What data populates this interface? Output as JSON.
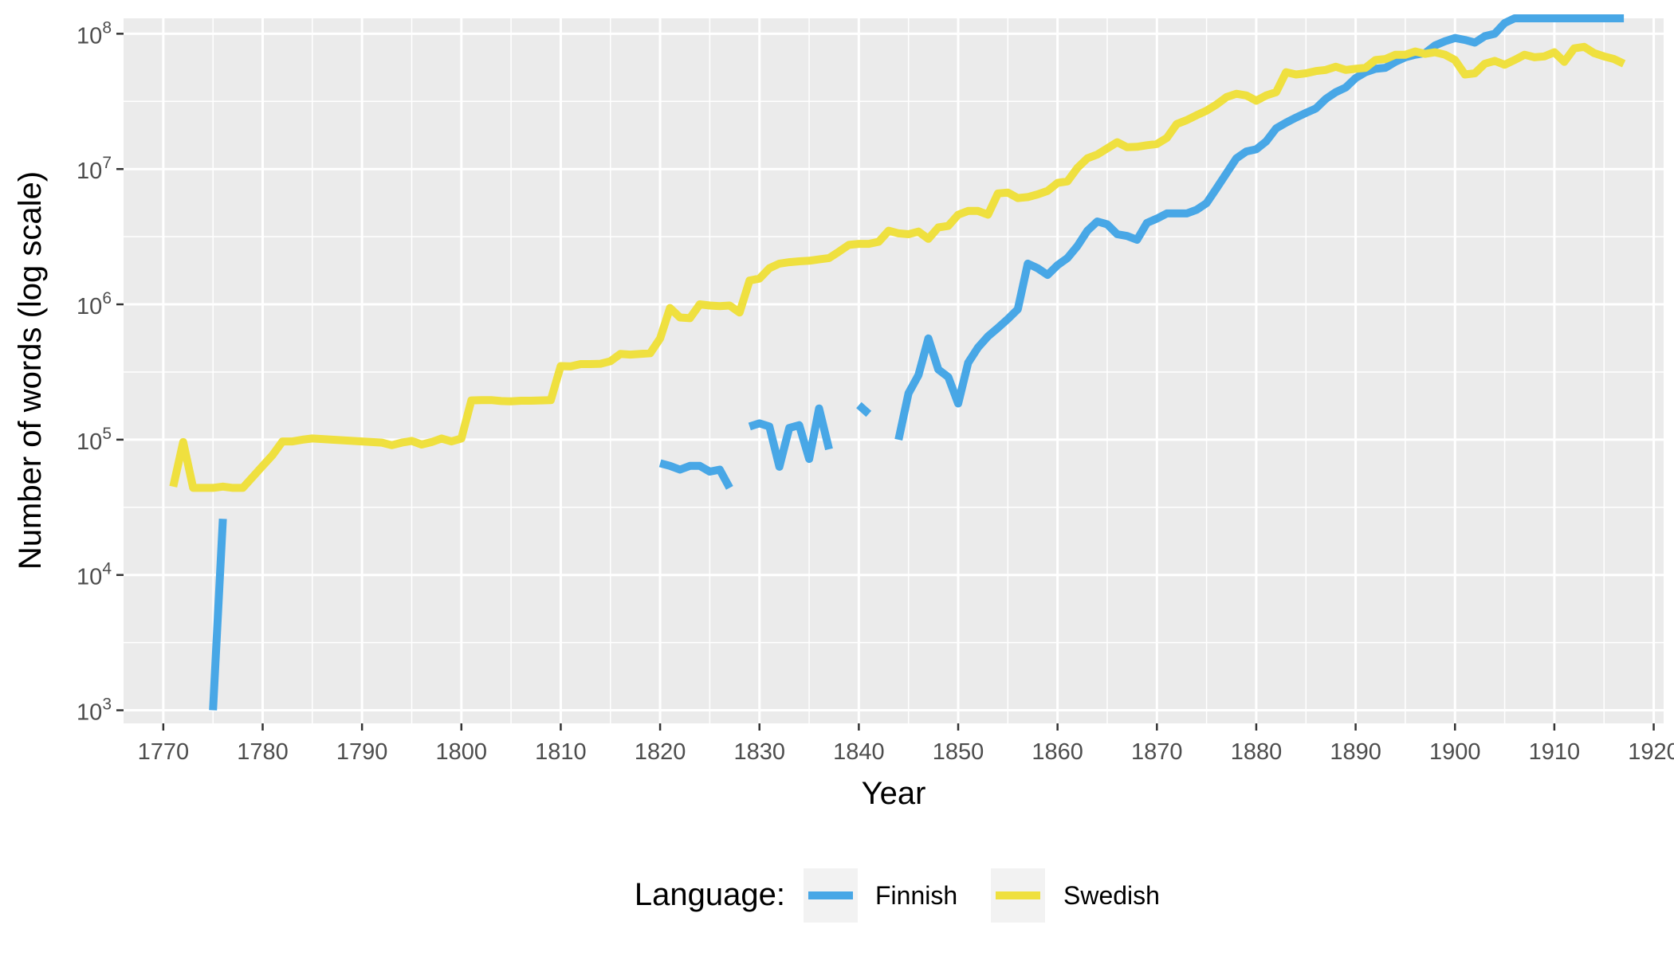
{
  "chart_data": {
    "type": "line",
    "xlabel": "Year",
    "ylabel": "Number of words (log scale)",
    "y_scale": "log10",
    "xlim": [
      1766,
      1921
    ],
    "ylim": [
      800,
      130000000
    ],
    "x_ticks": [
      1770,
      1780,
      1790,
      1800,
      1810,
      1820,
      1830,
      1840,
      1850,
      1860,
      1870,
      1880,
      1890,
      1900,
      1910,
      1920
    ],
    "x_tick_labels": [
      "1770",
      "1780",
      "1790",
      "1800",
      "1810",
      "1820",
      "1830",
      "1840",
      "1850",
      "1860",
      "1870",
      "1880",
      "1890",
      "1900",
      "1910",
      "1920"
    ],
    "y_ticks": [
      1000,
      10000,
      100000,
      1000000,
      10000000,
      100000000
    ],
    "y_tick_labels": [
      {
        "base": "10",
        "exp": "3"
      },
      {
        "base": "10",
        "exp": "4"
      },
      {
        "base": "10",
        "exp": "5"
      },
      {
        "base": "10",
        "exp": "6"
      },
      {
        "base": "10",
        "exp": "7"
      },
      {
        "base": "10",
        "exp": "8"
      }
    ],
    "grid": true,
    "legend": {
      "title": "Language:",
      "position": "bottom"
    },
    "series": [
      {
        "name": "Finnish",
        "color": "#48A7E6",
        "segments": [
          [
            [
              1775,
              1000
            ],
            [
              1776,
              26000
            ]
          ],
          [
            [
              1820,
              67000
            ],
            [
              1821,
              64000
            ],
            [
              1822,
              60000
            ],
            [
              1823,
              64000
            ],
            [
              1824,
              64000
            ],
            [
              1825,
              58000
            ],
            [
              1826,
              60000
            ],
            [
              1827,
              44000
            ]
          ],
          [
            [
              1829,
              125000
            ],
            [
              1830,
              132000
            ],
            [
              1831,
              125000
            ],
            [
              1832,
              63000
            ],
            [
              1833,
              122000
            ],
            [
              1834,
              128000
            ],
            [
              1835,
              72000
            ],
            [
              1836,
              170000
            ],
            [
              1837,
              85000
            ]
          ],
          [
            [
              1840,
              180000
            ],
            [
              1841,
              155000
            ]
          ],
          [
            [
              1844,
              100000
            ],
            [
              1845,
              220000
            ],
            [
              1846,
              300000
            ],
            [
              1847,
              560000
            ],
            [
              1848,
              330000
            ],
            [
              1849,
              290000
            ],
            [
              1850,
              185000
            ],
            [
              1851,
              370000
            ],
            [
              1852,
              480000
            ],
            [
              1853,
              580000
            ],
            [
              1854,
              670000
            ],
            [
              1855,
              780000
            ],
            [
              1856,
              920000
            ],
            [
              1857,
              2000000
            ],
            [
              1858,
              1850000
            ],
            [
              1859,
              1650000
            ],
            [
              1860,
              1950000
            ],
            [
              1861,
              2200000
            ],
            [
              1862,
              2700000
            ],
            [
              1863,
              3500000
            ],
            [
              1864,
              4100000
            ],
            [
              1865,
              3900000
            ],
            [
              1866,
              3300000
            ],
            [
              1867,
              3200000
            ],
            [
              1868,
              3000000
            ],
            [
              1869,
              4000000
            ],
            [
              1870,
              4300000
            ],
            [
              1871,
              4700000
            ],
            [
              1872,
              4700000
            ],
            [
              1873,
              4700000
            ],
            [
              1874,
              5000000
            ],
            [
              1875,
              5600000
            ],
            [
              1876,
              7200000
            ],
            [
              1877,
              9300000
            ],
            [
              1878,
              12000000
            ],
            [
              1879,
              13500000
            ],
            [
              1880,
              14000000
            ],
            [
              1881,
              16000000
            ],
            [
              1882,
              20000000
            ],
            [
              1883,
              22000000
            ],
            [
              1884,
              24000000
            ],
            [
              1885,
              26000000
            ],
            [
              1886,
              28000000
            ],
            [
              1887,
              33000000
            ],
            [
              1888,
              37000000
            ],
            [
              1889,
              40000000
            ],
            [
              1890,
              47000000
            ],
            [
              1891,
              52000000
            ],
            [
              1892,
              55000000
            ],
            [
              1893,
              56000000
            ],
            [
              1894,
              62000000
            ],
            [
              1895,
              67000000
            ],
            [
              1896,
              70000000
            ],
            [
              1897,
              72000000
            ],
            [
              1898,
              82000000
            ],
            [
              1899,
              88000000
            ],
            [
              1900,
              93000000
            ],
            [
              1901,
              90000000
            ],
            [
              1902,
              86000000
            ],
            [
              1903,
              96000000
            ],
            [
              1904,
              100000000
            ],
            [
              1905,
              120000000
            ],
            [
              1906,
              155000000
            ],
            [
              1907,
              180000000
            ],
            [
              1908,
              190000000
            ],
            [
              1909,
              195000000
            ],
            [
              1910,
              196000000
            ],
            [
              1911,
              185000000
            ],
            [
              1912,
              196000000
            ],
            [
              1913,
              202000000
            ],
            [
              1914,
              185000000
            ],
            [
              1915,
              195000000
            ],
            [
              1916,
              195000000
            ],
            [
              1917,
              178000000
            ]
          ]
        ]
      },
      {
        "name": "Swedish",
        "color": "#EFE03F",
        "segments": [
          [
            [
              1771,
              45000
            ],
            [
              1772,
              96000
            ],
            [
              1773,
              44000
            ],
            [
              1774,
              44000
            ],
            [
              1775,
              44000
            ],
            [
              1776,
              45000
            ],
            [
              1777,
              44000
            ],
            [
              1778,
              44000
            ],
            [
              1779,
              53000
            ],
            [
              1780,
              64000
            ],
            [
              1781,
              77000
            ],
            [
              1782,
              97000
            ],
            [
              1783,
              97000
            ],
            [
              1784,
              100000
            ],
            [
              1785,
              102000
            ],
            [
              1786,
              101000
            ],
            [
              1787,
              100000
            ],
            [
              1788,
              99000
            ],
            [
              1789,
              98000
            ],
            [
              1790,
              97000
            ],
            [
              1791,
              96000
            ],
            [
              1792,
              95000
            ],
            [
              1793,
              91000
            ],
            [
              1794,
              95000
            ],
            [
              1795,
              98000
            ],
            [
              1796,
              92000
            ],
            [
              1797,
              96000
            ],
            [
              1798,
              102000
            ],
            [
              1799,
              97000
            ],
            [
              1800,
              102000
            ],
            [
              1801,
              195000
            ],
            [
              1802,
              196000
            ],
            [
              1803,
              196000
            ],
            [
              1804,
              193000
            ],
            [
              1805,
              192000
            ],
            [
              1806,
              194000
            ],
            [
              1807,
              194000
            ],
            [
              1808,
              195000
            ],
            [
              1809,
              196000
            ],
            [
              1810,
              350000
            ],
            [
              1811,
              348000
            ],
            [
              1812,
              362000
            ],
            [
              1813,
              362000
            ],
            [
              1814,
              364000
            ],
            [
              1815,
              380000
            ],
            [
              1816,
              430000
            ],
            [
              1817,
              425000
            ],
            [
              1818,
              430000
            ],
            [
              1819,
              435000
            ],
            [
              1820,
              560000
            ],
            [
              1821,
              940000
            ],
            [
              1822,
              800000
            ],
            [
              1823,
              790000
            ],
            [
              1824,
              1000000
            ],
            [
              1825,
              980000
            ],
            [
              1826,
              970000
            ],
            [
              1827,
              980000
            ],
            [
              1828,
              870000
            ],
            [
              1829,
              1500000
            ],
            [
              1830,
              1550000
            ],
            [
              1831,
              1850000
            ],
            [
              1832,
              2000000
            ],
            [
              1833,
              2050000
            ],
            [
              1834,
              2080000
            ],
            [
              1835,
              2100000
            ],
            [
              1836,
              2150000
            ],
            [
              1837,
              2200000
            ],
            [
              1838,
              2450000
            ],
            [
              1839,
              2750000
            ],
            [
              1840,
              2800000
            ],
            [
              1841,
              2800000
            ],
            [
              1842,
              2900000
            ],
            [
              1843,
              3500000
            ],
            [
              1844,
              3350000
            ],
            [
              1845,
              3300000
            ],
            [
              1846,
              3450000
            ],
            [
              1847,
              3050000
            ],
            [
              1848,
              3700000
            ],
            [
              1849,
              3800000
            ],
            [
              1850,
              4600000
            ],
            [
              1851,
              4900000
            ],
            [
              1852,
              4900000
            ],
            [
              1853,
              4600000
            ],
            [
              1854,
              6600000
            ],
            [
              1855,
              6700000
            ],
            [
              1856,
              6100000
            ],
            [
              1857,
              6200000
            ],
            [
              1858,
              6500000
            ],
            [
              1859,
              6900000
            ],
            [
              1860,
              7900000
            ],
            [
              1861,
              8100000
            ],
            [
              1862,
              10200000
            ],
            [
              1863,
              12000000
            ],
            [
              1864,
              12800000
            ],
            [
              1865,
              14200000
            ],
            [
              1866,
              15800000
            ],
            [
              1867,
              14500000
            ],
            [
              1868,
              14600000
            ],
            [
              1869,
              15000000
            ],
            [
              1870,
              15300000
            ],
            [
              1871,
              17000000
            ],
            [
              1872,
              21500000
            ],
            [
              1873,
              23000000
            ],
            [
              1874,
              25000000
            ],
            [
              1875,
              27000000
            ],
            [
              1876,
              30000000
            ],
            [
              1877,
              34000000
            ],
            [
              1878,
              36000000
            ],
            [
              1879,
              35000000
            ],
            [
              1880,
              32000000
            ],
            [
              1881,
              35000000
            ],
            [
              1882,
              37000000
            ],
            [
              1883,
              52000000
            ],
            [
              1884,
              50000000
            ],
            [
              1885,
              51000000
            ],
            [
              1886,
              53000000
            ],
            [
              1887,
              54000000
            ],
            [
              1888,
              57000000
            ],
            [
              1889,
              54000000
            ],
            [
              1890,
              55000000
            ],
            [
              1891,
              56000000
            ],
            [
              1892,
              64000000
            ],
            [
              1893,
              65000000
            ],
            [
              1894,
              70000000
            ],
            [
              1895,
              70000000
            ],
            [
              1896,
              74000000
            ],
            [
              1897,
              71000000
            ],
            [
              1898,
              73000000
            ],
            [
              1899,
              70000000
            ],
            [
              1900,
              64000000
            ],
            [
              1901,
              50000000
            ],
            [
              1902,
              51000000
            ],
            [
              1903,
              60000000
            ],
            [
              1904,
              63000000
            ],
            [
              1905,
              59000000
            ],
            [
              1906,
              64000000
            ],
            [
              1907,
              70000000
            ],
            [
              1908,
              67000000
            ],
            [
              1909,
              68000000
            ],
            [
              1910,
              73000000
            ],
            [
              1911,
              62000000
            ],
            [
              1912,
              78000000
            ],
            [
              1913,
              80000000
            ],
            [
              1914,
              72000000
            ],
            [
              1915,
              68000000
            ],
            [
              1916,
              65000000
            ],
            [
              1917,
              60000000
            ]
          ]
        ]
      }
    ]
  }
}
